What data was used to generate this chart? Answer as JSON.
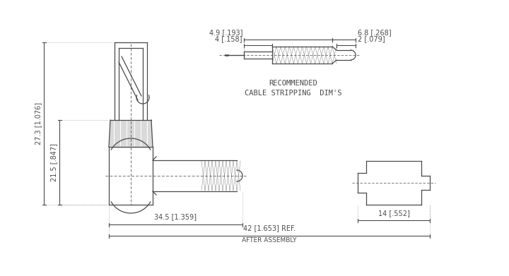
{
  "bg_color": "#ffffff",
  "lc": "#4a4a4a",
  "fig_width": 7.2,
  "fig_height": 3.91,
  "dpi": 100,
  "ann": {
    "dim_27_3": "27.3 [1.076]",
    "dim_21_5": "21.5 [.847]",
    "dim_34_5": "34.5 [1.359]",
    "dim_42": "42 [1.653] REF.",
    "after_assembly": "AFTER ASSEMBLY",
    "dim_14": "14 [.552]",
    "dim_4_9": "4.9 [.193]",
    "dim_4": "4 [.158]",
    "dim_6_8": "6.8 [.268]",
    "dim_2": "2 [.079]",
    "rec1": "RECOMMENDED",
    "rec2": "CABLE STRIPPING  DIM'S"
  }
}
